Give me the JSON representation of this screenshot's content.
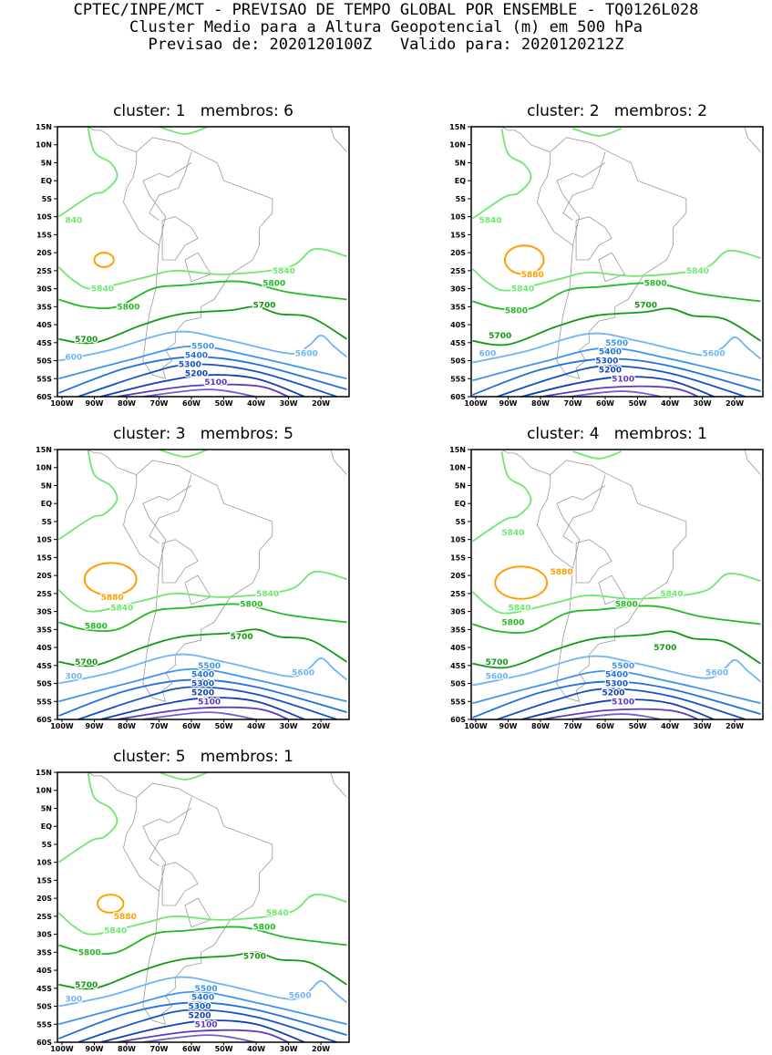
{
  "header": {
    "line1": "CPTEC/INPE/MCT - PREVISAO DE TEMPO GLOBAL POR ENSEMBLE - TQ0126L028",
    "line2": "Cluster Medio para a Altura Geopotencial (m) em 500 hPa",
    "line3": "Previsao de: 2020120100Z   Valido para: 2020120212Z"
  },
  "axes": {
    "lat_labels": [
      "15N",
      "10N",
      "5N",
      "EQ",
      "5S",
      "10S",
      "15S",
      "20S",
      "25S",
      "30S",
      "35S",
      "40S",
      "45S",
      "50S",
      "55S",
      "60S"
    ],
    "lat_values": [
      15,
      10,
      5,
      0,
      -5,
      -10,
      -15,
      -20,
      -25,
      -30,
      -35,
      -40,
      -45,
      -50,
      -55,
      -60
    ],
    "lon_labels": [
      "100W",
      "90W",
      "80W",
      "70W",
      "60W",
      "50W",
      "40W",
      "30W",
      "20W"
    ],
    "lon_values": [
      -100,
      -90,
      -80,
      -70,
      -60,
      -50,
      -40,
      -30,
      -20
    ],
    "lon_range": [
      -101.4,
      -11.3
    ],
    "lat_range": [
      -60,
      15
    ]
  },
  "colors": {
    "5880": "#ffa000",
    "5840": "#6ee86e",
    "5800": "#22bb22",
    "5700": "#129912",
    "5600": "#6fb4f8",
    "5500": "#3f95ee",
    "5400": "#2272dd",
    "5300": "#1452c8",
    "5200": "#1240b0",
    "5100": "#5a3cc0",
    "5000": "#7a5ad0",
    "coast": "#9a9a9a"
  },
  "panels": [
    {
      "title": "cluster: 1   membros: 6",
      "high": {
        "lon": -87,
        "lat": -22,
        "rx": 3,
        "ry": 2
      },
      "labels": [
        {
          "t": "840",
          "lon": -99,
          "lat": -11,
          "v": "5840"
        },
        {
          "t": "5840",
          "lon": -35,
          "lat": -25,
          "v": "5840"
        },
        {
          "t": "5840",
          "lon": -91,
          "lat": -30,
          "v": "5840"
        },
        {
          "t": "5800",
          "lon": -38,
          "lat": -28.5,
          "v": "5800"
        },
        {
          "t": "5800",
          "lon": -83,
          "lat": -35,
          "v": "5800"
        },
        {
          "t": "5700",
          "lon": -41,
          "lat": -34.5,
          "v": "5700"
        },
        {
          "t": "5700",
          "lon": -96,
          "lat": -44,
          "v": "5700"
        },
        {
          "t": "600",
          "lon": -99,
          "lat": -49,
          "v": "5600"
        },
        {
          "t": "5600",
          "lon": -28,
          "lat": -48,
          "v": "5600"
        },
        {
          "t": "5500",
          "lon": -60,
          "lat": -46,
          "v": "5500"
        },
        {
          "t": "5400",
          "lon": -62,
          "lat": -48.5,
          "v": "5400"
        },
        {
          "t": "5300",
          "lon": -64,
          "lat": -51,
          "v": "5300"
        },
        {
          "t": "5200",
          "lon": -62,
          "lat": -53.5,
          "v": "5200"
        },
        {
          "t": "5100",
          "lon": -56,
          "lat": -56,
          "v": "5100"
        }
      ]
    },
    {
      "title": "cluster: 2   membros: 2",
      "high": {
        "lon": -85,
        "lat": -22,
        "rx": 6,
        "ry": 4
      },
      "labels": [
        {
          "t": "5840",
          "lon": -99,
          "lat": -11,
          "v": "5840"
        },
        {
          "t": "5840",
          "lon": -35,
          "lat": -25,
          "v": "5840"
        },
        {
          "t": "5840",
          "lon": -89,
          "lat": -30,
          "v": "5840"
        },
        {
          "t": "5880",
          "lon": -86,
          "lat": -26,
          "v": "5880"
        },
        {
          "t": "5800",
          "lon": -48,
          "lat": -28.5,
          "v": "5800"
        },
        {
          "t": "5800",
          "lon": -91,
          "lat": -36,
          "v": "5800"
        },
        {
          "t": "5700",
          "lon": -51,
          "lat": -34.5,
          "v": "5700"
        },
        {
          "t": "5700",
          "lon": -96,
          "lat": -43,
          "v": "5700"
        },
        {
          "t": "600",
          "lon": -99,
          "lat": -48,
          "v": "5600"
        },
        {
          "t": "5600",
          "lon": -30,
          "lat": -48,
          "v": "5600"
        },
        {
          "t": "5500",
          "lon": -60,
          "lat": -45,
          "v": "5500"
        },
        {
          "t": "5400",
          "lon": -62,
          "lat": -47.5,
          "v": "5400"
        },
        {
          "t": "5300",
          "lon": -63,
          "lat": -50,
          "v": "5300"
        },
        {
          "t": "5200",
          "lon": -62,
          "lat": -52.5,
          "v": "5200"
        },
        {
          "t": "5100",
          "lon": -58,
          "lat": -55,
          "v": "5100"
        }
      ]
    },
    {
      "title": "cluster: 3   membros: 5",
      "high": {
        "lon": -85,
        "lat": -21,
        "rx": 8,
        "ry": 4.5
      },
      "labels": [
        {
          "t": "5880",
          "lon": -88,
          "lat": -26,
          "v": "5880"
        },
        {
          "t": "5840",
          "lon": -40,
          "lat": -25,
          "v": "5840"
        },
        {
          "t": "5840",
          "lon": -85,
          "lat": -29,
          "v": "5840"
        },
        {
          "t": "5800",
          "lon": -45,
          "lat": -28,
          "v": "5800"
        },
        {
          "t": "5800",
          "lon": -93,
          "lat": -34,
          "v": "5800"
        },
        {
          "t": "5700",
          "lon": -48,
          "lat": -37,
          "v": "5700"
        },
        {
          "t": "5700",
          "lon": -96,
          "lat": -44,
          "v": "5700"
        },
        {
          "t": "300",
          "lon": -99,
          "lat": -48,
          "v": "5600"
        },
        {
          "t": "5600",
          "lon": -29,
          "lat": -47,
          "v": "5600"
        },
        {
          "t": "5500",
          "lon": -58,
          "lat": -45,
          "v": "5500"
        },
        {
          "t": "5400",
          "lon": -60,
          "lat": -47.5,
          "v": "5400"
        },
        {
          "t": "5300",
          "lon": -60,
          "lat": -50,
          "v": "5300"
        },
        {
          "t": "5200",
          "lon": -60,
          "lat": -52.5,
          "v": "5200"
        },
        {
          "t": "5100",
          "lon": -58,
          "lat": -55,
          "v": "5100"
        }
      ]
    },
    {
      "title": "cluster: 4   membros: 1",
      "high": {
        "lon": -86,
        "lat": -22,
        "rx": 8,
        "ry": 4.5
      },
      "labels": [
        {
          "t": "5840",
          "lon": -92,
          "lat": -8,
          "v": "5840"
        },
        {
          "t": "5880",
          "lon": -77,
          "lat": -19,
          "v": "5880"
        },
        {
          "t": "5840",
          "lon": -43,
          "lat": -25,
          "v": "5840"
        },
        {
          "t": "5840",
          "lon": -90,
          "lat": -29,
          "v": "5840"
        },
        {
          "t": "5800",
          "lon": -57,
          "lat": -28,
          "v": "5800"
        },
        {
          "t": "5800",
          "lon": -92,
          "lat": -33,
          "v": "5800"
        },
        {
          "t": "5700",
          "lon": -45,
          "lat": -40,
          "v": "5700"
        },
        {
          "t": "5700",
          "lon": -97,
          "lat": -44,
          "v": "5700"
        },
        {
          "t": "5600",
          "lon": -97,
          "lat": -48,
          "v": "5600"
        },
        {
          "t": "5600",
          "lon": -29,
          "lat": -47,
          "v": "5600"
        },
        {
          "t": "5500",
          "lon": -58,
          "lat": -45,
          "v": "5500"
        },
        {
          "t": "5400",
          "lon": -60,
          "lat": -47.5,
          "v": "5400"
        },
        {
          "t": "5300",
          "lon": -60,
          "lat": -50,
          "v": "5300"
        },
        {
          "t": "5200",
          "lon": -61,
          "lat": -52.5,
          "v": "5200"
        },
        {
          "t": "5100",
          "lon": -58,
          "lat": -55,
          "v": "5100"
        }
      ]
    },
    {
      "title": "cluster: 5   membros: 1",
      "high": {
        "lon": -85,
        "lat": -21.5,
        "rx": 4,
        "ry": 2.5
      },
      "labels": [
        {
          "t": "5880",
          "lon": -84,
          "lat": -25,
          "v": "5880"
        },
        {
          "t": "5840",
          "lon": -37,
          "lat": -24,
          "v": "5840"
        },
        {
          "t": "5840",
          "lon": -87,
          "lat": -29,
          "v": "5840"
        },
        {
          "t": "5800",
          "lon": -41,
          "lat": -28,
          "v": "5800"
        },
        {
          "t": "5800",
          "lon": -95,
          "lat": -35,
          "v": "5800"
        },
        {
          "t": "5700",
          "lon": -44,
          "lat": -36,
          "v": "5700"
        },
        {
          "t": "5700",
          "lon": -96,
          "lat": -44,
          "v": "5700"
        },
        {
          "t": "300",
          "lon": -99,
          "lat": -48,
          "v": "5600"
        },
        {
          "t": "5600",
          "lon": -30,
          "lat": -47,
          "v": "5600"
        },
        {
          "t": "5500",
          "lon": -59,
          "lat": -45,
          "v": "5500"
        },
        {
          "t": "5400",
          "lon": -60,
          "lat": -47.5,
          "v": "5400"
        },
        {
          "t": "5300",
          "lon": -61,
          "lat": -50,
          "v": "5300"
        },
        {
          "t": "5200",
          "lon": -61,
          "lat": -52.5,
          "v": "5200"
        },
        {
          "t": "5100",
          "lon": -59,
          "lat": -55,
          "v": "5100"
        }
      ]
    }
  ],
  "contours": [
    {
      "v": "5840",
      "pts": [
        [
          -92,
          15
        ],
        [
          -90,
          8
        ],
        [
          -85,
          5
        ],
        [
          -83,
          1
        ],
        [
          -87,
          -3
        ],
        [
          -91,
          -4
        ],
        [
          -101,
          -10
        ]
      ]
    },
    {
      "v": "5840",
      "pts": [
        [
          -70,
          15
        ],
        [
          -62,
          13
        ],
        [
          -55,
          15
        ]
      ]
    },
    {
      "v": "5840",
      "pts": [
        [
          -101,
          -24
        ],
        [
          -96,
          -28
        ],
        [
          -90,
          -30
        ],
        [
          -75,
          -27
        ],
        [
          -65,
          -25
        ],
        [
          -50,
          -26
        ],
        [
          -30,
          -24
        ],
        [
          -22,
          -19
        ],
        [
          -12,
          -21
        ]
      ]
    },
    {
      "v": "5800",
      "pts": [
        [
          -101,
          -33
        ],
        [
          -93,
          -35
        ],
        [
          -83,
          -35
        ],
        [
          -72,
          -30
        ],
        [
          -62,
          -29
        ],
        [
          -45,
          -28
        ],
        [
          -30,
          -31
        ],
        [
          -12,
          -33
        ]
      ]
    },
    {
      "v": "5700",
      "pts": [
        [
          -101,
          -44
        ],
        [
          -90,
          -45
        ],
        [
          -75,
          -40
        ],
        [
          -63,
          -37
        ],
        [
          -48,
          -36
        ],
        [
          -40,
          -35
        ],
        [
          -33,
          -37
        ],
        [
          -23,
          -38
        ],
        [
          -12,
          -44
        ]
      ]
    },
    {
      "v": "5600",
      "pts": [
        [
          -101,
          -50
        ],
        [
          -85,
          -47
        ],
        [
          -65,
          -42
        ],
        [
          -50,
          -44
        ],
        [
          -30,
          -48
        ],
        [
          -24,
          -46
        ],
        [
          -20,
          -43
        ],
        [
          -16,
          -46
        ],
        [
          -12,
          -49
        ]
      ]
    },
    {
      "v": "5500",
      "pts": [
        [
          -101,
          -55
        ],
        [
          -80,
          -50
        ],
        [
          -60,
          -46
        ],
        [
          -40,
          -49
        ],
        [
          -12,
          -55
        ]
      ]
    },
    {
      "v": "5400",
      "pts": [
        [
          -101,
          -59
        ],
        [
          -80,
          -52
        ],
        [
          -60,
          -49
        ],
        [
          -40,
          -51
        ],
        [
          -12,
          -58
        ]
      ]
    },
    {
      "v": "5300",
      "pts": [
        [
          -95,
          -60
        ],
        [
          -75,
          -54
        ],
        [
          -60,
          -51
        ],
        [
          -40,
          -53
        ],
        [
          -15,
          -60
        ]
      ]
    },
    {
      "v": "5200",
      "pts": [
        [
          -88,
          -60
        ],
        [
          -70,
          -56
        ],
        [
          -55,
          -54
        ],
        [
          -40,
          -55
        ],
        [
          -25,
          -60
        ]
      ]
    },
    {
      "v": "5100",
      "pts": [
        [
          -83,
          -60
        ],
        [
          -60,
          -57
        ],
        [
          -40,
          -57
        ],
        [
          -30,
          -60
        ]
      ]
    },
    {
      "v": "5000",
      "pts": [
        [
          -75,
          -60
        ],
        [
          -55,
          -58
        ],
        [
          -40,
          -60
        ]
      ]
    }
  ]
}
